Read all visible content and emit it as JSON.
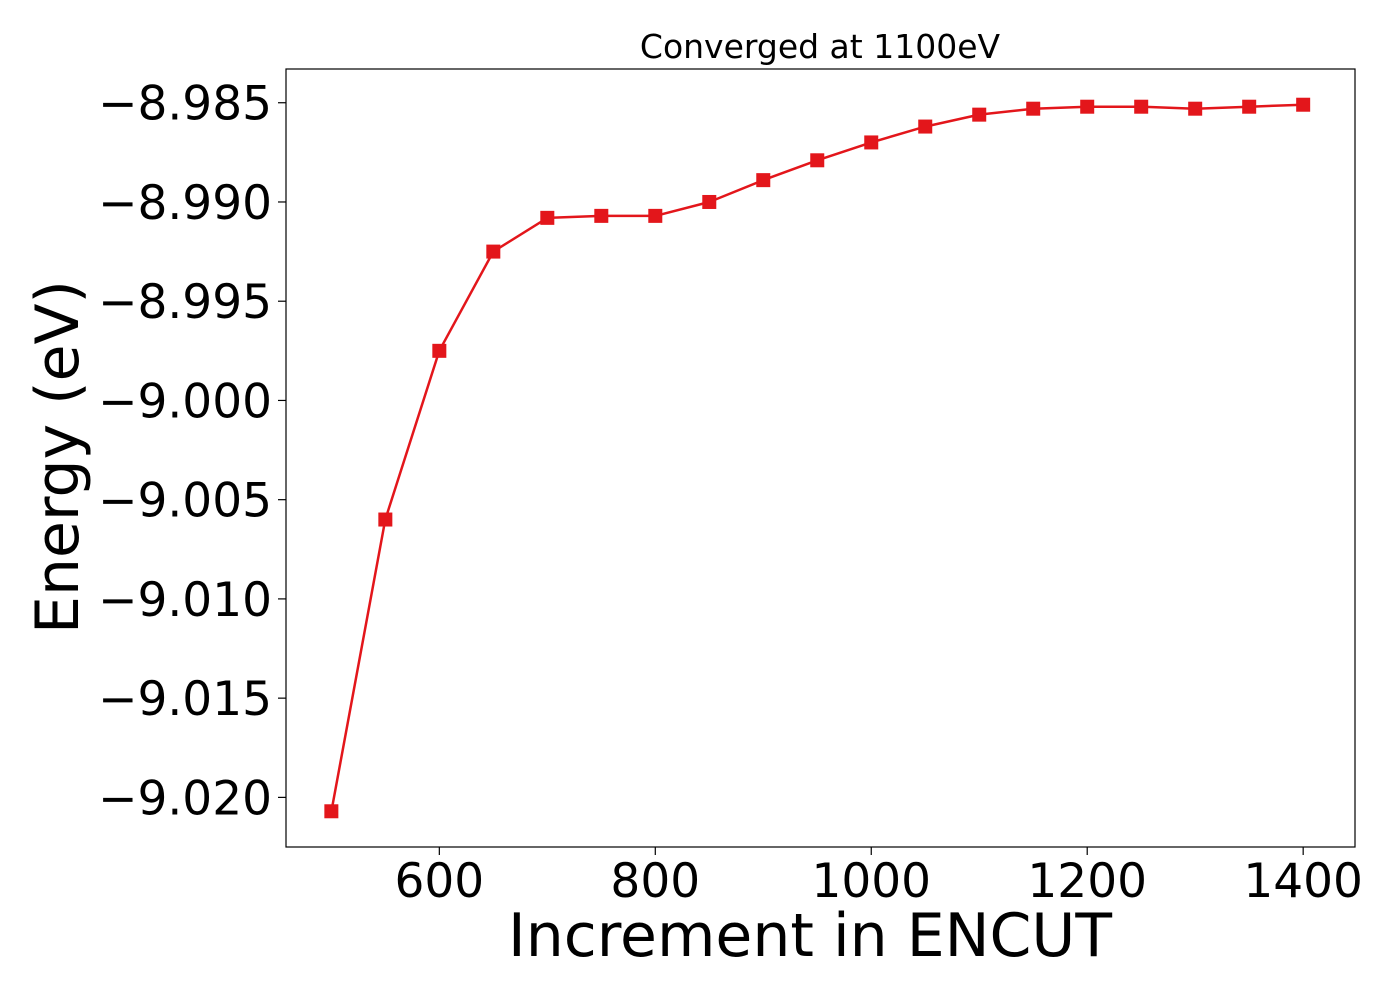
{
  "chart_data": {
    "type": "line",
    "title": "Converged at 1100eV",
    "xlabel": "Increment in ENCUT",
    "ylabel": "Energy (eV)",
    "xlim": [
      458,
      1448
    ],
    "ylim": [
      -9.0225,
      -8.9833
    ],
    "x_ticks": [
      600,
      800,
      1000,
      1200,
      1400
    ],
    "y_ticks": [
      -8.985,
      -8.99,
      -8.995,
      -9.0,
      -9.005,
      -9.01,
      -9.015,
      -9.02
    ],
    "x_tick_labels": [
      "600",
      "800",
      "1000",
      "1200",
      "1400"
    ],
    "y_tick_labels": [
      "−8.985",
      "−8.990",
      "−8.995",
      "−9.000",
      "−9.005",
      "−9.010",
      "−9.015",
      "−9.020"
    ],
    "grid": false,
    "legend": "none",
    "series": [
      {
        "color": "#e3161b",
        "marker": "square",
        "x": [
          500,
          550,
          600,
          650,
          700,
          750,
          800,
          850,
          900,
          950,
          1000,
          1050,
          1100,
          1150,
          1200,
          1250,
          1300,
          1350,
          1400
        ],
        "y": [
          -9.0207,
          -9.006,
          -8.9975,
          -8.9925,
          -8.9908,
          -8.9907,
          -8.9907,
          -8.99,
          -8.9889,
          -8.9879,
          -8.987,
          -8.9862,
          -8.9856,
          -8.9853,
          -8.9852,
          -8.9852,
          -8.9853,
          -8.9852,
          -8.9851
        ]
      }
    ]
  }
}
